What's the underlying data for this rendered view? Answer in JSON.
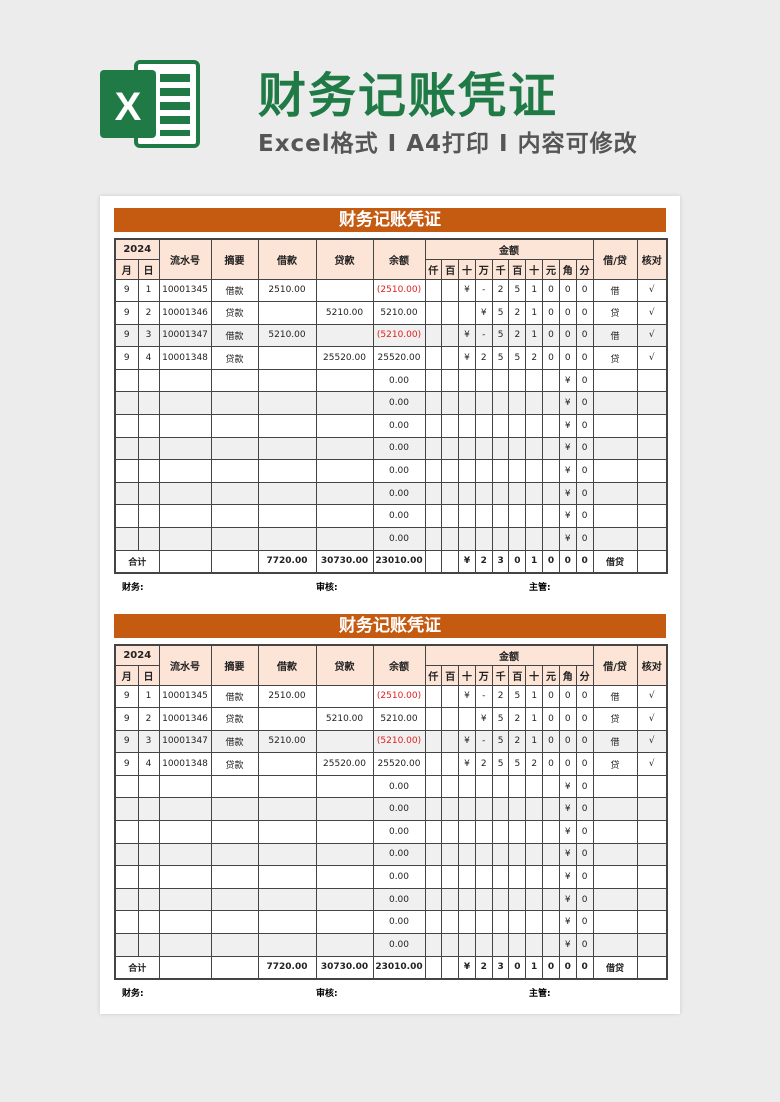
{
  "header": {
    "title": "财务记账凭证",
    "subtitle": "Excel格式 I A4打印 I 内容可修改",
    "logo_letter": "X"
  },
  "voucher": {
    "title": "财务记账凭证",
    "year": "2024",
    "columns": {
      "month": "月",
      "day": "日",
      "serial": "流水号",
      "summary": "摘要",
      "debit": "借款",
      "credit": "贷款",
      "balance": "余额",
      "amount": "金额",
      "direction": "借/贷",
      "check": "核对"
    },
    "digit_headers": [
      "仟",
      "百",
      "十",
      "万",
      "千",
      "百",
      "十",
      "元",
      "角",
      "分"
    ],
    "rows": [
      {
        "month": "9",
        "day": "1",
        "serial": "10001345",
        "summary": "借款",
        "debit": "2510.00",
        "credit": "",
        "balance": "(2510.00)",
        "negative": true,
        "digits": [
          "",
          "",
          "¥",
          "-",
          "2",
          "5",
          "1",
          "0",
          "0",
          "0"
        ],
        "direction": "借",
        "check": "√"
      },
      {
        "month": "9",
        "day": "2",
        "serial": "10001346",
        "summary": "贷款",
        "debit": "",
        "credit": "5210.00",
        "balance": "5210.00",
        "negative": false,
        "digits": [
          "",
          "",
          "",
          "¥",
          "5",
          "2",
          "1",
          "0",
          "0",
          "0"
        ],
        "direction": "贷",
        "check": "√"
      },
      {
        "month": "9",
        "day": "3",
        "serial": "10001347",
        "summary": "借款",
        "debit": "5210.00",
        "credit": "",
        "balance": "(5210.00)",
        "negative": true,
        "digits": [
          "",
          "",
          "¥",
          "-",
          "5",
          "2",
          "1",
          "0",
          "0",
          "0"
        ],
        "direction": "借",
        "check": "√"
      },
      {
        "month": "9",
        "day": "4",
        "serial": "10001348",
        "summary": "贷款",
        "debit": "",
        "credit": "25520.00",
        "balance": "25520.00",
        "negative": false,
        "digits": [
          "",
          "",
          "¥",
          "2",
          "5",
          "5",
          "2",
          "0",
          "0",
          "0"
        ],
        "direction": "贷",
        "check": "√"
      },
      {
        "balance": "0.00",
        "digits": [
          "",
          "",
          "",
          "",
          "",
          "",
          "",
          "",
          "¥",
          "0"
        ]
      },
      {
        "balance": "0.00",
        "digits": [
          "",
          "",
          "",
          "",
          "",
          "",
          "",
          "",
          "¥",
          "0"
        ]
      },
      {
        "balance": "0.00",
        "digits": [
          "",
          "",
          "",
          "",
          "",
          "",
          "",
          "",
          "¥",
          "0"
        ]
      },
      {
        "balance": "0.00",
        "digits": [
          "",
          "",
          "",
          "",
          "",
          "",
          "",
          "",
          "¥",
          "0"
        ]
      },
      {
        "balance": "0.00",
        "digits": [
          "",
          "",
          "",
          "",
          "",
          "",
          "",
          "",
          "¥",
          "0"
        ]
      },
      {
        "balance": "0.00",
        "digits": [
          "",
          "",
          "",
          "",
          "",
          "",
          "",
          "",
          "¥",
          "0"
        ]
      },
      {
        "balance": "0.00",
        "digits": [
          "",
          "",
          "",
          "",
          "",
          "",
          "",
          "",
          "¥",
          "0"
        ]
      },
      {
        "balance": "0.00",
        "digits": [
          "",
          "",
          "",
          "",
          "",
          "",
          "",
          "",
          "¥",
          "0"
        ]
      }
    ],
    "total": {
      "label": "合计",
      "debit": "7720.00",
      "credit": "30730.00",
      "balance": "23010.00",
      "digits": [
        "",
        "",
        "¥",
        "2",
        "3",
        "0",
        "1",
        "0",
        "0",
        "0"
      ],
      "direction": "借贷"
    },
    "footer": {
      "finance": "财务:",
      "review": "审核:",
      "supervisor": "主管:"
    }
  },
  "colors": {
    "brand_green": "#1f7a45",
    "title_bar": "#c55a11",
    "header_fill": "#fce4d6",
    "negative": "#e02020"
  }
}
